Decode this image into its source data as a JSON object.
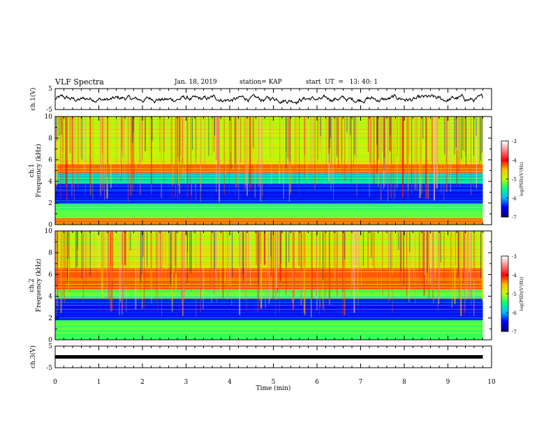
{
  "header": {
    "title": "VLF Spectra",
    "date": "Jan. 18, 2019",
    "station": "station= KAP",
    "start": "start  UT  =   13: 40: 1"
  },
  "chart_data": {
    "type": "heatmap",
    "xlabel": "Time (min)",
    "xlim": [
      0,
      10
    ],
    "x_ticks": [
      "0",
      "1",
      "2",
      "3",
      "4",
      "5",
      "6",
      "7",
      "8",
      "9",
      "10"
    ],
    "data_end_min": 9.8,
    "panels": [
      {
        "id": "ch1_waveform",
        "ylabel": "ch.1(V)",
        "ylim": [
          -5,
          5
        ],
        "ticks": [
          "5",
          "-5"
        ],
        "description_type": "line",
        "baseline": 0,
        "amplitude": 1.2
      },
      {
        "id": "ch1_spectrogram",
        "ylabel_top": "ch.1",
        "ylabel": "Frequency (kHz)",
        "ylim": [
          0,
          10
        ],
        "ticks": [
          "0",
          "2",
          "4",
          "6",
          "8",
          "10"
        ],
        "bands": [
          {
            "from": 0.0,
            "to": 0.6,
            "level": "high"
          },
          {
            "from": 0.6,
            "to": 2.0,
            "level": "mid"
          },
          {
            "from": 2.0,
            "to": 3.8,
            "level": "low"
          },
          {
            "from": 3.8,
            "to": 4.8,
            "level": "mid-low"
          },
          {
            "from": 4.8,
            "to": 5.6,
            "level": "high"
          },
          {
            "from": 5.6,
            "to": 10.0,
            "level": "mid-high"
          }
        ]
      },
      {
        "id": "ch2_spectrogram",
        "ylabel_top": "ch.2",
        "ylabel": "Frequency (kHz)",
        "ylim": [
          0,
          10
        ],
        "ticks": [
          "0",
          "2",
          "4",
          "6",
          "8",
          "10"
        ],
        "bands": [
          {
            "from": 0.0,
            "to": 1.8,
            "level": "mid"
          },
          {
            "from": 1.8,
            "to": 3.8,
            "level": "low"
          },
          {
            "from": 3.8,
            "to": 4.6,
            "level": "mid"
          },
          {
            "from": 4.6,
            "to": 6.6,
            "level": "high"
          },
          {
            "from": 6.6,
            "to": 10.0,
            "level": "mid-high"
          }
        ]
      },
      {
        "id": "ch3_waveform",
        "ylabel": "ch.3(V)",
        "ylim": [
          -5,
          5
        ],
        "ticks": [
          "5",
          "-5"
        ],
        "description_type": "line",
        "baseline": 0,
        "amplitude": 0
      }
    ],
    "colorbar": {
      "label": "log(PSD)(V²/Hz)",
      "range": [
        -7,
        -3
      ],
      "ticks": [
        "-3",
        "-4",
        "-5",
        "-6",
        "-7"
      ],
      "colormap": [
        "#00007f",
        "#0000ff",
        "#00bfff",
        "#00ff7f",
        "#bfff00",
        "#ffbf00",
        "#ff0000",
        "#ff7f7f",
        "#ffffff"
      ]
    }
  }
}
